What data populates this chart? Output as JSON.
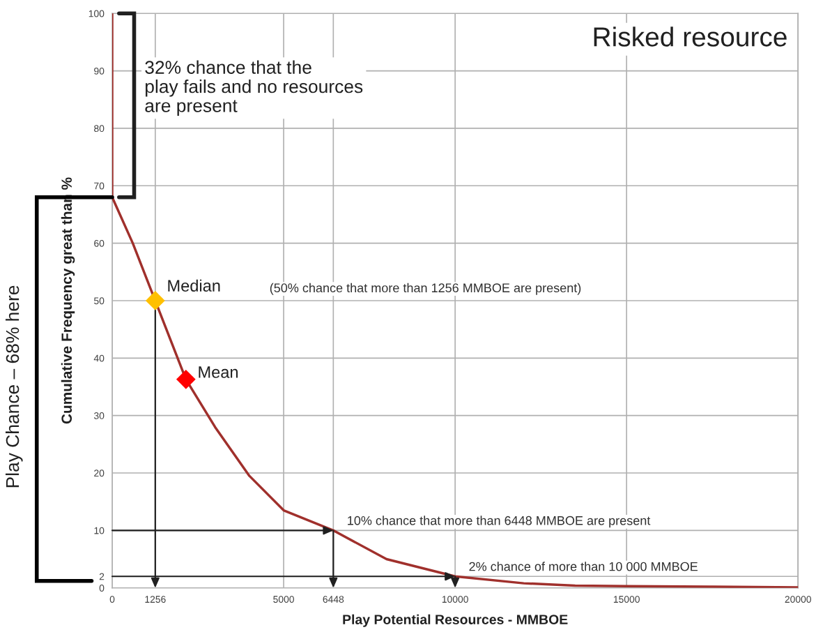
{
  "chart_data": {
    "type": "line",
    "title": "Risked resource",
    "xlabel": "Play Potential Resources - MMBOE",
    "ylabel": "Cumulative Frequency great than %",
    "xlim": [
      0,
      20000
    ],
    "ylim": [
      0,
      100
    ],
    "xticks": [
      0,
      1256,
      5000,
      6448,
      10000,
      15000,
      20000
    ],
    "yticks": [
      0,
      2,
      10,
      20,
      30,
      40,
      50,
      60,
      70,
      80,
      90,
      100
    ],
    "grid": true,
    "series": [
      {
        "color": "#a0302c",
        "x": [
          0,
          0,
          600,
          2150,
          3000,
          4000,
          5000,
          6448,
          8000,
          10000,
          12000,
          13500,
          15000,
          17500,
          20000
        ],
        "values": [
          100,
          68,
          60,
          36.3,
          28,
          19.5,
          13.5,
          10,
          5,
          2,
          0.8,
          0.4,
          0.3,
          0.2,
          0.1
        ],
        "marker": "none"
      },
      {
        "type": "scatter",
        "name": "Median",
        "color": "#ffc000",
        "x": [
          1256
        ],
        "values": [
          50
        ],
        "marker": "diamond"
      },
      {
        "type": "scatter",
        "name": "Mean",
        "color": "#ff0000",
        "x": [
          2150
        ],
        "values": [
          36.3
        ],
        "marker": "diamond"
      }
    ],
    "annotations": [
      "(50% chance that more than 1256 MMBOE are present)",
      {
        "text": "10% chance that more than 6448 MMBOE are present",
        "x": 6448,
        "y": 10
      },
      {
        "text": "2% chance of more than 10 000 MMBOE",
        "x": 10000,
        "y": 2
      },
      "32% chance that the\nplay fails and no resources\nare present",
      "Play Chance – 68% here"
    ]
  }
}
